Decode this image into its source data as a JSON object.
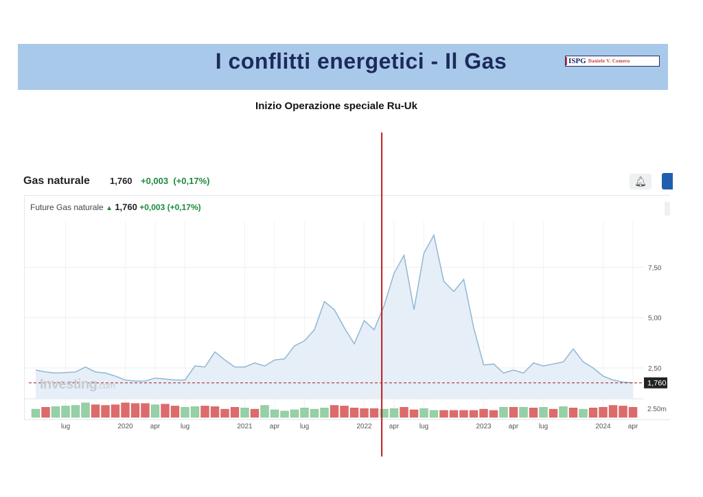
{
  "slide": {
    "title": "I conflitti energetici - Il Gas",
    "logo_mark": "ISPG",
    "logo_author": "Daniele V. Comero",
    "subtitle": "Inizio Operazione speciale Ru-Uk"
  },
  "instrument": {
    "name": "Gas naturale",
    "price": "1,760",
    "change": "+0,003",
    "change_pct": "(+0,17%)",
    "legend_name": "Future Gas naturale"
  },
  "watermark": {
    "brand": "Investing",
    "suffix": ".com"
  },
  "colors": {
    "line": "#8fb7d4",
    "area": "#e6eef7",
    "vol_up": "#96d0a6",
    "vol_down": "#de6b6b",
    "marker_line": "#c0191d",
    "current_price_line": "#a11b1b"
  },
  "chart_data": {
    "type": "area",
    "x_unit": "month",
    "x": [
      "2019-04",
      "2019-05",
      "2019-06",
      "2019-07",
      "2019-08",
      "2019-09",
      "2019-10",
      "2019-11",
      "2019-12",
      "2020-01",
      "2020-02",
      "2020-03",
      "2020-04",
      "2020-05",
      "2020-06",
      "2020-07",
      "2020-08",
      "2020-09",
      "2020-10",
      "2020-11",
      "2020-12",
      "2021-01",
      "2021-02",
      "2021-03",
      "2021-04",
      "2021-05",
      "2021-06",
      "2021-07",
      "2021-08",
      "2021-09",
      "2021-10",
      "2021-11",
      "2021-12",
      "2022-01",
      "2022-02",
      "2022-03",
      "2022-04",
      "2022-05",
      "2022-06",
      "2022-07",
      "2022-08",
      "2022-09",
      "2022-10",
      "2022-11",
      "2022-12",
      "2023-01",
      "2023-02",
      "2023-03",
      "2023-04",
      "2023-05",
      "2023-06",
      "2023-07",
      "2023-08",
      "2023-09",
      "2023-10",
      "2023-11",
      "2023-12",
      "2024-01",
      "2024-02",
      "2024-03",
      "2024-04"
    ],
    "series": [
      {
        "values": [
          2.4,
          2.3,
          2.25,
          2.27,
          2.3,
          2.55,
          2.3,
          2.25,
          2.1,
          1.9,
          1.85,
          1.85,
          2.0,
          1.95,
          1.9,
          1.9,
          2.6,
          2.55,
          3.3,
          2.9,
          2.55,
          2.55,
          2.75,
          2.6,
          2.9,
          2.95,
          3.6,
          3.85,
          4.4,
          5.8,
          5.4,
          4.5,
          3.7,
          4.85,
          4.4,
          5.6,
          7.2,
          8.1,
          5.4,
          8.2,
          9.1,
          6.8,
          6.3,
          6.9,
          4.5,
          2.65,
          2.7,
          2.25,
          2.4,
          2.25,
          2.75,
          2.6,
          2.7,
          2.8,
          3.45,
          2.8,
          2.5,
          2.1,
          1.9,
          1.8,
          1.76
        ]
      }
    ],
    "volume": {
      "unit": "m",
      "values": [
        1.3,
        1.6,
        1.7,
        1.8,
        1.9,
        2.3,
        2.0,
        1.9,
        2.0,
        2.3,
        2.2,
        2.2,
        2.0,
        2.1,
        1.8,
        1.6,
        1.7,
        1.8,
        1.7,
        1.3,
        1.6,
        1.5,
        1.3,
        1.9,
        1.2,
        1.0,
        1.2,
        1.5,
        1.3,
        1.5,
        1.9,
        1.8,
        1.5,
        1.4,
        1.4,
        1.3,
        1.4,
        1.6,
        1.2,
        1.4,
        1.1,
        1.1,
        1.1,
        1.1,
        1.1,
        1.3,
        1.1,
        1.6,
        1.6,
        1.6,
        1.5,
        1.6,
        1.3,
        1.7,
        1.5,
        1.3,
        1.5,
        1.6,
        1.9,
        1.8,
        1.6
      ],
      "up": [
        true,
        false,
        true,
        true,
        true,
        true,
        false,
        false,
        false,
        false,
        false,
        false,
        true,
        false,
        false,
        true,
        true,
        false,
        false,
        false,
        false,
        true,
        false,
        true,
        true,
        true,
        true,
        true,
        true,
        true,
        false,
        false,
        false,
        false,
        false,
        true,
        true,
        false,
        false,
        true,
        true,
        false,
        false,
        false,
        false,
        false,
        false,
        true,
        false,
        true,
        false,
        true,
        false,
        true,
        false,
        true,
        false,
        false,
        false,
        false,
        false
      ]
    },
    "y_axis": {
      "ticks": [
        7.5,
        5.0,
        2.5
      ],
      "tick_labels": [
        "7,50",
        "5,00",
        "2,50"
      ],
      "range": [
        1.0,
        9.8
      ]
    },
    "volume_axis": {
      "tick_label": "2.50m",
      "tick_value": 2.5
    },
    "current_price": {
      "value": 1.76,
      "label": "1,760"
    },
    "x_ticks": [
      {
        "x": "2019-07",
        "label": "lug"
      },
      {
        "x": "2020-01",
        "label": "2020"
      },
      {
        "x": "2020-04",
        "label": "apr"
      },
      {
        "x": "2020-07",
        "label": "lug"
      },
      {
        "x": "2021-01",
        "label": "2021"
      },
      {
        "x": "2021-04",
        "label": "apr"
      },
      {
        "x": "2021-07",
        "label": "lug"
      },
      {
        "x": "2022-01",
        "label": "2022"
      },
      {
        "x": "2022-04",
        "label": "apr"
      },
      {
        "x": "2022-07",
        "label": "lug"
      },
      {
        "x": "2023-01",
        "label": "2023"
      },
      {
        "x": "2023-04",
        "label": "apr"
      },
      {
        "x": "2023-07",
        "label": "lug"
      },
      {
        "x": "2024-01",
        "label": "2024"
      },
      {
        "x": "2024-04",
        "label": "apr"
      }
    ],
    "event_marker": {
      "x": "2022-02-24"
    },
    "grid": true
  }
}
